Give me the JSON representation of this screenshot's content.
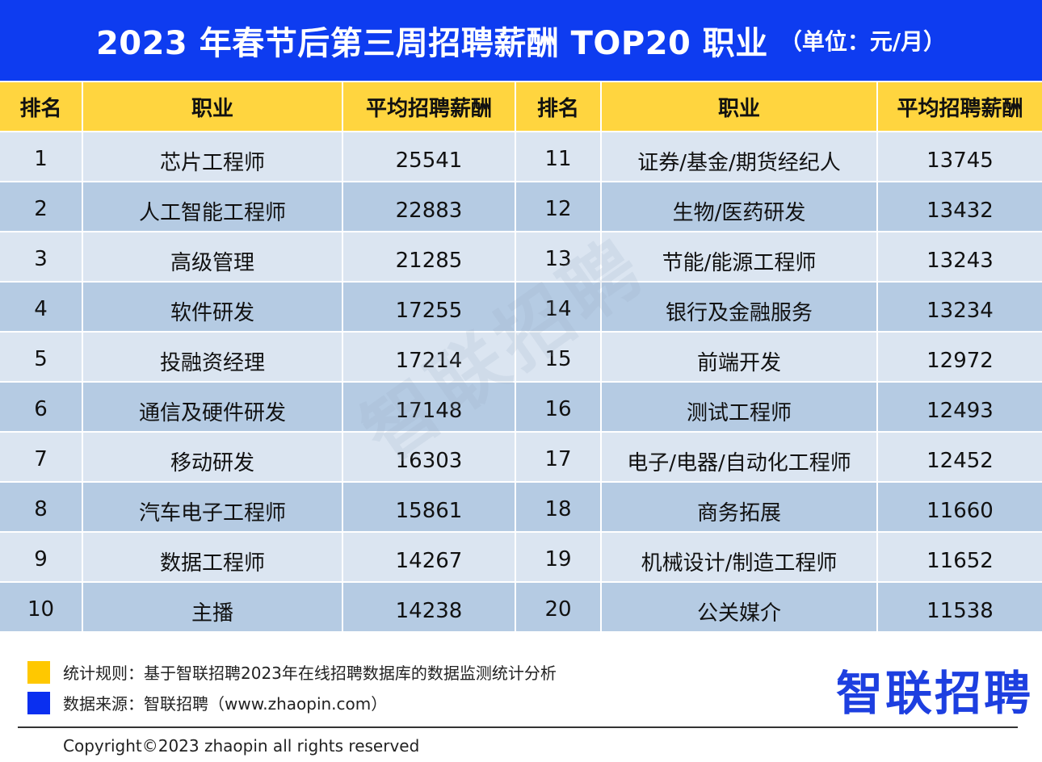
{
  "header": {
    "title": "2023 年春节后第三周招聘薪酬 TOP20 职业",
    "unit": "（单位：元/月）"
  },
  "table": {
    "columns": [
      "排名",
      "职业",
      "平均招聘薪酬",
      "排名",
      "职业",
      "平均招聘薪酬"
    ],
    "rows": [
      {
        "rank_left": "1",
        "job_left": "芯片工程师",
        "salary_left": "25541",
        "rank_right": "11",
        "job_right": "证券/基金/期货经纪人",
        "salary_right": "13745"
      },
      {
        "rank_left": "2",
        "job_left": "人工智能工程师",
        "salary_left": "22883",
        "rank_right": "12",
        "job_right": "生物/医药研发",
        "salary_right": "13432"
      },
      {
        "rank_left": "3",
        "job_left": "高级管理",
        "salary_left": "21285",
        "rank_right": "13",
        "job_right": "节能/能源工程师",
        "salary_right": "13243"
      },
      {
        "rank_left": "4",
        "job_left": "软件研发",
        "salary_left": "17255",
        "rank_right": "14",
        "job_right": "银行及金融服务",
        "salary_right": "13234"
      },
      {
        "rank_left": "5",
        "job_left": "投融资经理",
        "salary_left": "17214",
        "rank_right": "15",
        "job_right": "前端开发",
        "salary_right": "12972"
      },
      {
        "rank_left": "6",
        "job_left": "通信及硬件研发",
        "salary_left": "17148",
        "rank_right": "16",
        "job_right": "测试工程师",
        "salary_right": "12493"
      },
      {
        "rank_left": "7",
        "job_left": "移动研发",
        "salary_left": "16303",
        "rank_right": "17",
        "job_right": "电子/电器/自动化工程师",
        "salary_right": "12452"
      },
      {
        "rank_left": "8",
        "job_left": "汽车电子工程师",
        "salary_left": "15861",
        "rank_right": "18",
        "job_right": "商务拓展",
        "salary_right": "11660"
      },
      {
        "rank_left": "9",
        "job_left": "数据工程师",
        "salary_left": "14267",
        "rank_right": "19",
        "job_right": "机械设计/制造工程师",
        "salary_right": "11652"
      },
      {
        "rank_left": "10",
        "job_left": "主播",
        "salary_left": "14238",
        "rank_right": "20",
        "job_right": "公关媒介",
        "salary_right": "11538"
      }
    ]
  },
  "watermark": "智联招聘",
  "footer": {
    "rule_note": "统计规则：基于智联招聘2023年在线招聘数据库的数据监测统计分析",
    "source_note": "数据来源：智联招聘（www.zhaopin.com）",
    "logo_text": "智联招聘",
    "copyright": "Copyright©2023 zhaopin all rights reserved"
  },
  "colors": {
    "title_bar": "#0E3CF0",
    "header_row": "#FFD53F",
    "row_light": "#DBE5F1",
    "row_dark": "#B5CBE3",
    "rule_swatch": "#FFC800",
    "source_swatch": "#0A2FF0",
    "logo": "#1D3FE0"
  }
}
